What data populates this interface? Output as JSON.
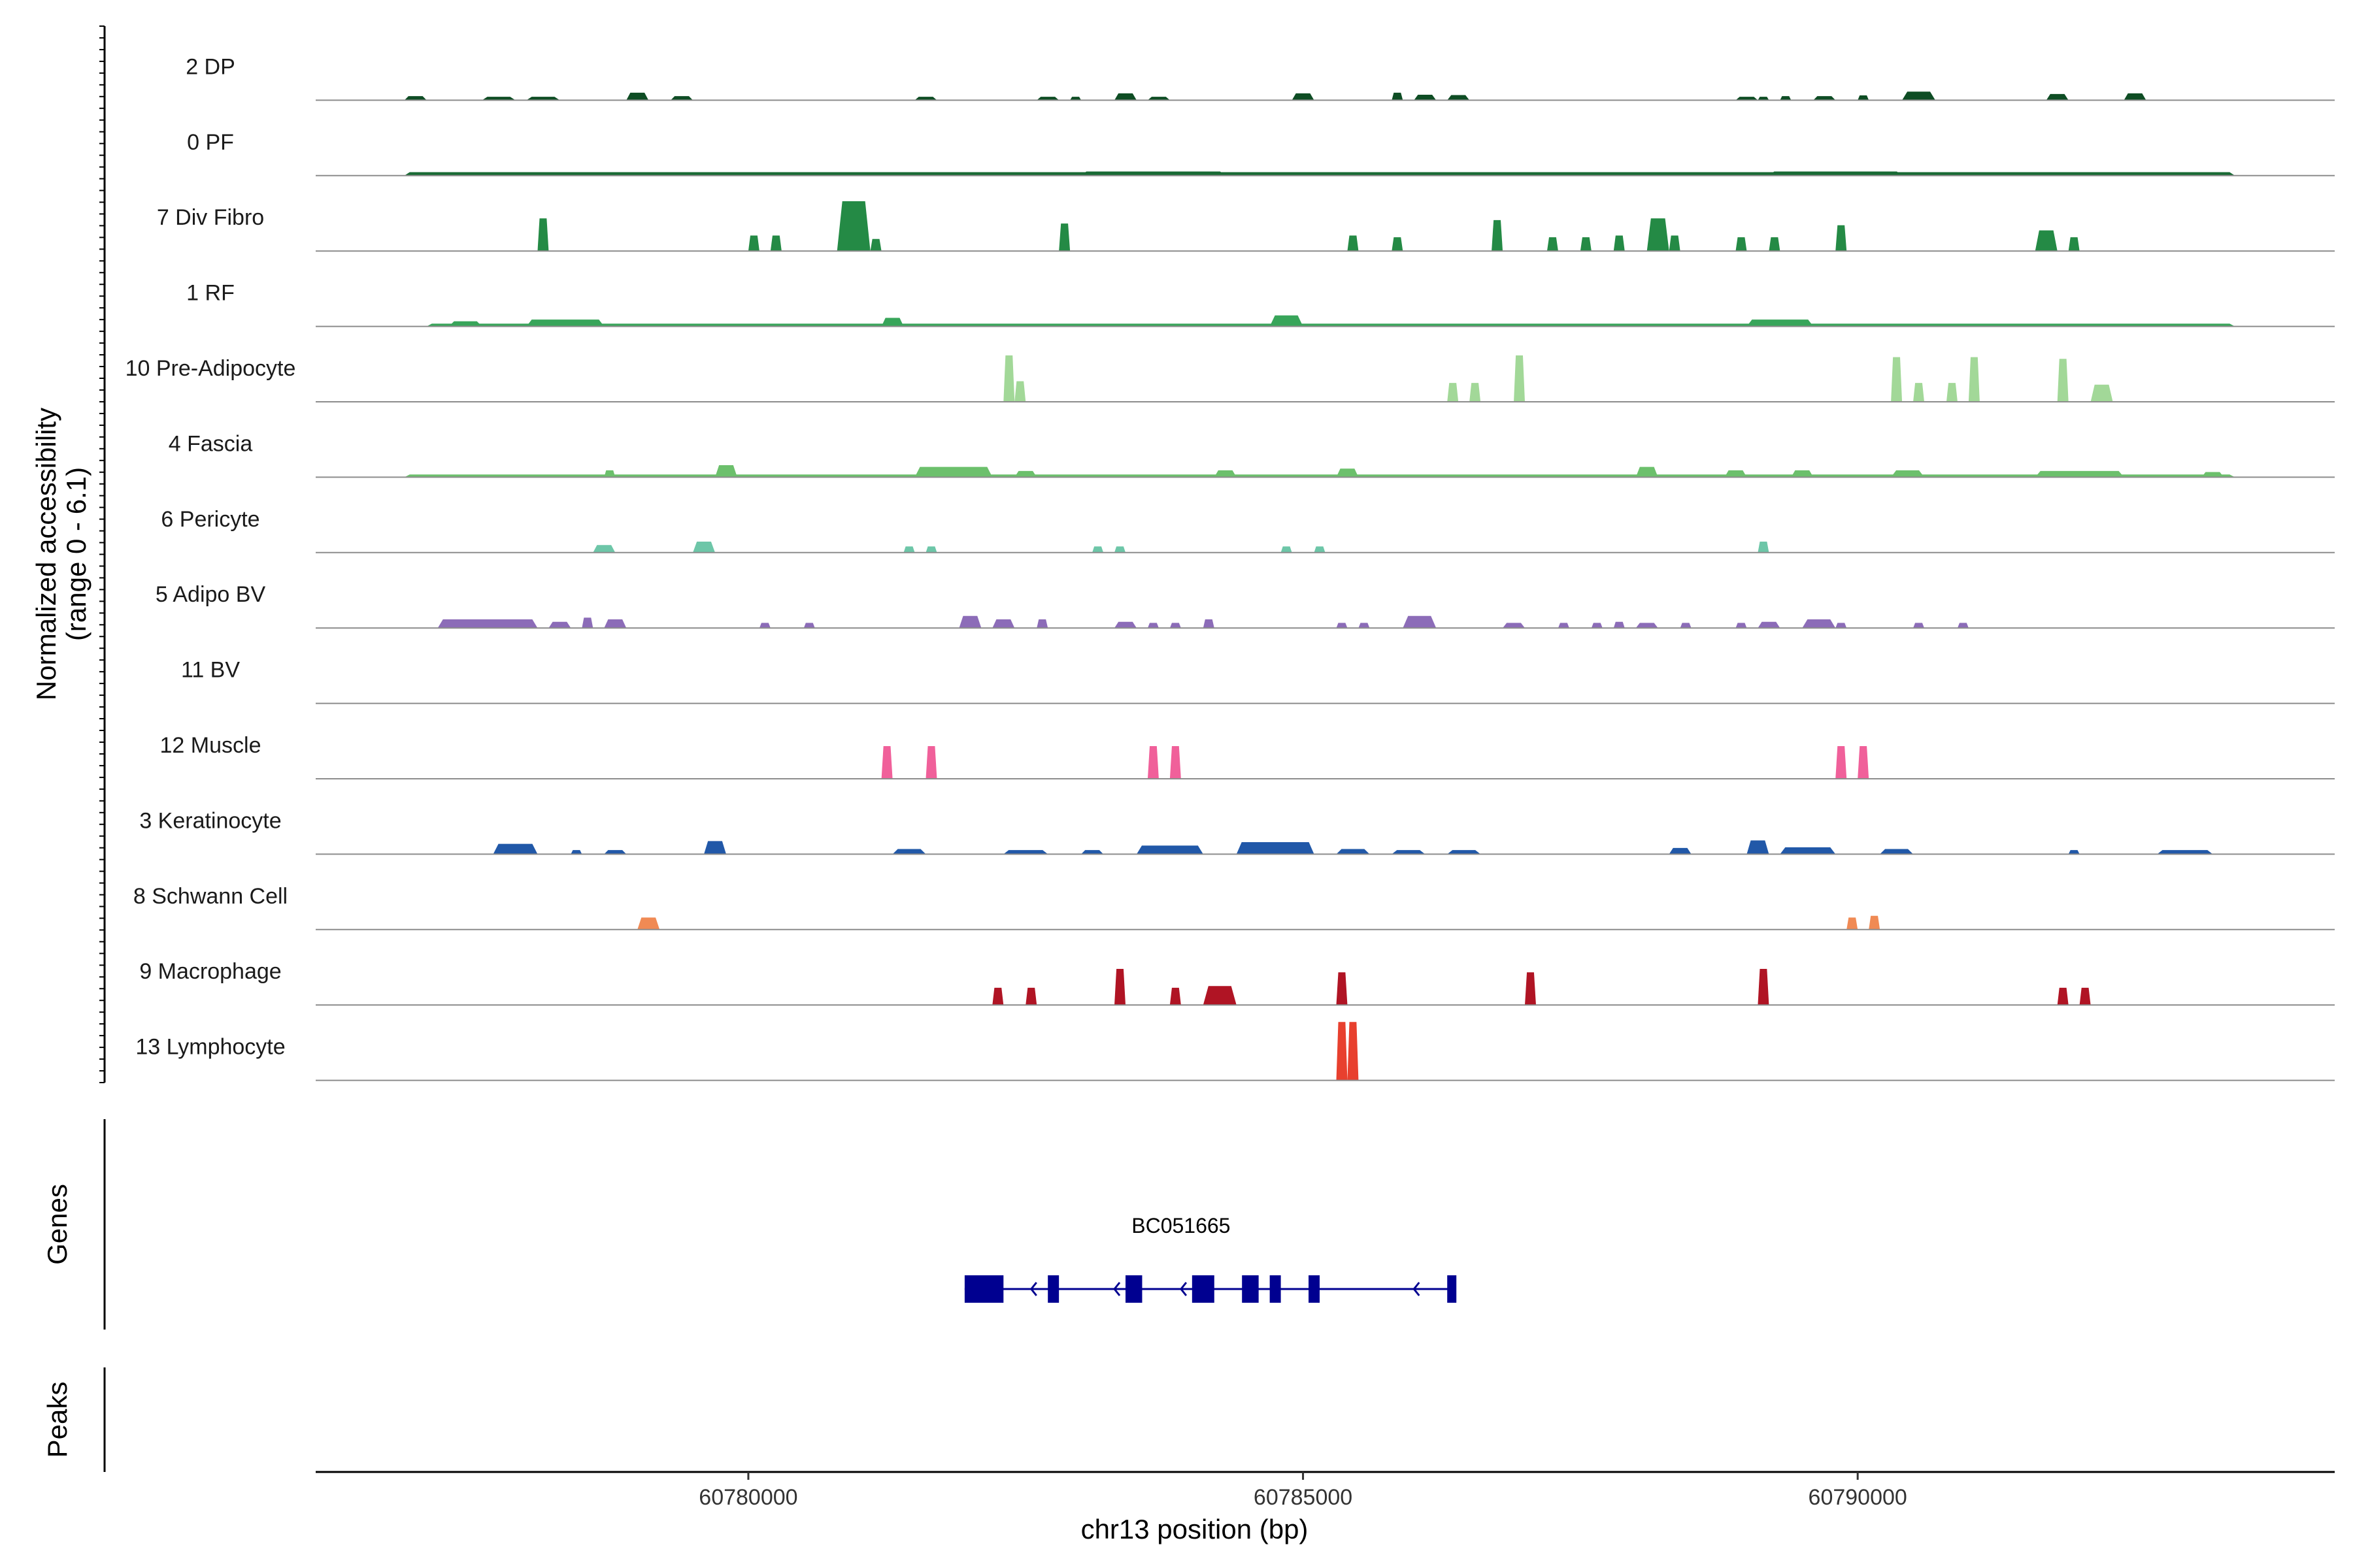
{
  "chart_data": {
    "type": "area",
    "title": "",
    "ylabel": "Normalized accessibility\n(range 0 - 6.1)",
    "y_range": [
      0,
      6.1
    ],
    "xlabel": "chr13 position (bp)",
    "xlim": [
      60776100,
      60794300
    ],
    "x_ticks": [
      60780000,
      60785000,
      60790000
    ],
    "x_tick_labels": [
      "60780000",
      "60785000",
      "60790000"
    ],
    "tracks": [
      {
        "name": "2 DP",
        "color": "#0e4d24",
        "peaks": [
          [
            60776900,
            60777100,
            0.12
          ],
          [
            60777600,
            60777900,
            0.1
          ],
          [
            60778000,
            60778300,
            0.1
          ],
          [
            60778900,
            60779100,
            0.22
          ],
          [
            60779300,
            60779500,
            0.12
          ],
          [
            60781500,
            60781700,
            0.1
          ],
          [
            60782600,
            60782800,
            0.1
          ],
          [
            60782900,
            60783000,
            0.1
          ],
          [
            60783300,
            60783500,
            0.2
          ],
          [
            60783600,
            60783800,
            0.1
          ],
          [
            60784900,
            60785100,
            0.2
          ],
          [
            60785800,
            60785900,
            0.22
          ],
          [
            60786000,
            60786200,
            0.16
          ],
          [
            60786300,
            60786500,
            0.15
          ],
          [
            60788900,
            60789100,
            0.1
          ],
          [
            60789100,
            60789200,
            0.1
          ],
          [
            60789300,
            60789400,
            0.12
          ],
          [
            60789600,
            60789800,
            0.12
          ],
          [
            60790000,
            60790100,
            0.14
          ],
          [
            60790400,
            60790700,
            0.25
          ],
          [
            60791700,
            60791900,
            0.18
          ],
          [
            60792400,
            60792600,
            0.2
          ]
        ]
      },
      {
        "name": "0 PF",
        "color": "#186a34",
        "peaks": [
          [
            60776900,
            60793400,
            0.1
          ],
          [
            60778500,
            60779300,
            0.1
          ],
          [
            60779600,
            60780300,
            0.1
          ],
          [
            60783000,
            60784300,
            0.12
          ],
          [
            60784500,
            60785600,
            0.1
          ],
          [
            60786500,
            60787700,
            0.1
          ],
          [
            60789200,
            60790400,
            0.12
          ],
          [
            60791700,
            60792500,
            0.1
          ]
        ]
      },
      {
        "name": "7 Div Fibro",
        "color": "#248a45",
        "peaks": [
          [
            60778100,
            60778200,
            0.95
          ],
          [
            60780000,
            60780100,
            0.45
          ],
          [
            60780200,
            60780300,
            0.45
          ],
          [
            60780800,
            60781100,
            1.45
          ],
          [
            60781100,
            60781200,
            0.35
          ],
          [
            60782800,
            60782900,
            0.8
          ],
          [
            60785400,
            60785500,
            0.45
          ],
          [
            60785800,
            60785900,
            0.4
          ],
          [
            60786700,
            60786800,
            0.9
          ],
          [
            60787200,
            60787300,
            0.4
          ],
          [
            60787500,
            60787600,
            0.4
          ],
          [
            60787800,
            60787900,
            0.45
          ],
          [
            60788100,
            60788300,
            0.95
          ],
          [
            60788300,
            60788400,
            0.45
          ],
          [
            60788900,
            60789000,
            0.4
          ],
          [
            60789200,
            60789300,
            0.4
          ],
          [
            60789800,
            60789900,
            0.75
          ],
          [
            60791600,
            60791800,
            0.6
          ],
          [
            60791900,
            60792000,
            0.4
          ]
        ]
      },
      {
        "name": "1 RF",
        "color": "#38a55a",
        "peaks": [
          [
            60777100,
            60793400,
            0.08
          ],
          [
            60777300,
            60777600,
            0.15
          ],
          [
            60778000,
            60778700,
            0.2
          ],
          [
            60781200,
            60781400,
            0.25
          ],
          [
            60784700,
            60785000,
            0.32
          ],
          [
            60789000,
            60789600,
            0.2
          ]
        ]
      },
      {
        "name": "10 Pre-Adipocyte",
        "color": "#a2d898",
        "peaks": [
          [
            60782300,
            60782400,
            1.35
          ],
          [
            60782400,
            60782500,
            0.6
          ],
          [
            60786300,
            60786400,
            0.55
          ],
          [
            60786500,
            60786600,
            0.55
          ],
          [
            60786900,
            60787000,
            1.35
          ],
          [
            60790300,
            60790400,
            1.3
          ],
          [
            60790500,
            60790600,
            0.55
          ],
          [
            60790800,
            60790900,
            0.55
          ],
          [
            60791000,
            60791100,
            1.3
          ],
          [
            60791800,
            60791900,
            1.25
          ],
          [
            60792100,
            60792300,
            0.5
          ]
        ]
      },
      {
        "name": "4 Fascia",
        "color": "#6cc06c",
        "peaks": [
          [
            60776900,
            60793400,
            0.08
          ],
          [
            60778700,
            60778800,
            0.2
          ],
          [
            60779700,
            60779900,
            0.35
          ],
          [
            60781500,
            60782200,
            0.3
          ],
          [
            60782400,
            60782600,
            0.18
          ],
          [
            60784200,
            60784400,
            0.2
          ],
          [
            60785300,
            60785500,
            0.25
          ],
          [
            60788000,
            60788200,
            0.3
          ],
          [
            60788800,
            60789000,
            0.2
          ],
          [
            60789400,
            60789600,
            0.2
          ],
          [
            60790300,
            60790600,
            0.2
          ],
          [
            60791600,
            60792400,
            0.18
          ],
          [
            60793100,
            60793300,
            0.15
          ]
        ]
      },
      {
        "name": "6 Pericyte",
        "color": "#6dc6a8",
        "peaks": [
          [
            60778600,
            60778800,
            0.22
          ],
          [
            60779500,
            60779700,
            0.32
          ],
          [
            60781400,
            60781500,
            0.18
          ],
          [
            60781600,
            60781700,
            0.18
          ],
          [
            60783100,
            60783200,
            0.18
          ],
          [
            60783300,
            60783400,
            0.18
          ],
          [
            60784800,
            60784900,
            0.18
          ],
          [
            60785100,
            60785200,
            0.18
          ],
          [
            60789100,
            60789200,
            0.32
          ]
        ]
      },
      {
        "name": "5 Adipo BV",
        "color": "#8c6cb8",
        "peaks": [
          [
            60777200,
            60778100,
            0.25
          ],
          [
            60778200,
            60778400,
            0.18
          ],
          [
            60778500,
            60778600,
            0.3
          ],
          [
            60778700,
            60778900,
            0.25
          ],
          [
            60780100,
            60780200,
            0.15
          ],
          [
            60780500,
            60780600,
            0.15
          ],
          [
            60781900,
            60782100,
            0.35
          ],
          [
            60782200,
            60782400,
            0.25
          ],
          [
            60782600,
            60782700,
            0.25
          ],
          [
            60783300,
            60783500,
            0.18
          ],
          [
            60783600,
            60783700,
            0.15
          ],
          [
            60783800,
            60783900,
            0.15
          ],
          [
            60784100,
            60784200,
            0.25
          ],
          [
            60785300,
            60785400,
            0.15
          ],
          [
            60785500,
            60785600,
            0.15
          ],
          [
            60785900,
            60786200,
            0.35
          ],
          [
            60786800,
            60787000,
            0.15
          ],
          [
            60787300,
            60787400,
            0.15
          ],
          [
            60787600,
            60787700,
            0.15
          ],
          [
            60787800,
            60787900,
            0.18
          ],
          [
            60788000,
            60788200,
            0.15
          ],
          [
            60788400,
            60788500,
            0.15
          ],
          [
            60788900,
            60789000,
            0.15
          ],
          [
            60789100,
            60789300,
            0.18
          ],
          [
            60789500,
            60789800,
            0.25
          ],
          [
            60789800,
            60789900,
            0.15
          ],
          [
            60790500,
            60790600,
            0.15
          ],
          [
            60790900,
            60791000,
            0.15
          ]
        ]
      },
      {
        "name": "11 BV",
        "color": "#6a51a3",
        "peaks": []
      },
      {
        "name": "12 Muscle",
        "color": "#f0609a",
        "peaks": [
          [
            60781200,
            60781300,
            0.95
          ],
          [
            60781600,
            60781700,
            0.95
          ],
          [
            60783600,
            60783700,
            0.95
          ],
          [
            60783800,
            60783900,
            0.95
          ],
          [
            60789800,
            60789900,
            0.95
          ],
          [
            60790000,
            60790100,
            0.95
          ]
        ]
      },
      {
        "name": "3 Keratinocyte",
        "color": "#2158a8",
        "peaks": [
          [
            60777700,
            60778100,
            0.3
          ],
          [
            60778400,
            60778500,
            0.12
          ],
          [
            60778700,
            60778900,
            0.12
          ],
          [
            60779600,
            60779800,
            0.38
          ],
          [
            60781300,
            60781600,
            0.15
          ],
          [
            60782300,
            60782700,
            0.12
          ],
          [
            60783000,
            60783200,
            0.12
          ],
          [
            60783500,
            60784100,
            0.25
          ],
          [
            60784400,
            60785100,
            0.35
          ],
          [
            60785300,
            60785600,
            0.15
          ],
          [
            60785800,
            60786100,
            0.12
          ],
          [
            60786300,
            60786600,
            0.12
          ],
          [
            60788300,
            60788500,
            0.18
          ],
          [
            60789000,
            60789200,
            0.4
          ],
          [
            60789300,
            60789800,
            0.2
          ],
          [
            60790200,
            60790500,
            0.15
          ],
          [
            60791900,
            60792000,
            0.12
          ],
          [
            60792700,
            60793200,
            0.12
          ]
        ]
      },
      {
        "name": "8 Schwann Cell",
        "color": "#f08a54",
        "peaks": [
          [
            60779000,
            60779200,
            0.35
          ],
          [
            60789900,
            60790000,
            0.35
          ],
          [
            60790100,
            60790200,
            0.4
          ]
        ]
      },
      {
        "name": "9 Macrophage",
        "color": "#b01424",
        "peaks": [
          [
            60782200,
            60782300,
            0.5
          ],
          [
            60782500,
            60782600,
            0.5
          ],
          [
            60783300,
            60783400,
            1.05
          ],
          [
            60783800,
            60783900,
            0.5
          ],
          [
            60784100,
            60784400,
            0.55
          ],
          [
            60785300,
            60785400,
            0.95
          ],
          [
            60787000,
            60787100,
            0.95
          ],
          [
            60789100,
            60789200,
            1.05
          ],
          [
            60791800,
            60791900,
            0.5
          ],
          [
            60792000,
            60792100,
            0.5
          ]
        ]
      },
      {
        "name": "13 Lymphocyte",
        "color": "#e8402e",
        "peaks": [
          [
            60785300,
            60785400,
            1.7
          ],
          [
            60785400,
            60785500,
            1.7
          ]
        ]
      }
    ],
    "gene": {
      "name": "BC051665",
      "strand": "-",
      "start": 60781950,
      "end": 60786350,
      "exons": [
        [
          60781950,
          60782300
        ],
        [
          60782700,
          60782800
        ],
        [
          60783400,
          60783550
        ],
        [
          60784000,
          60784200
        ],
        [
          60784450,
          60784600
        ],
        [
          60784700,
          60784800
        ],
        [
          60785050,
          60785150
        ],
        [
          60786300,
          60786350
        ]
      ],
      "color": "#000090"
    },
    "panels": {
      "genes_label": "Genes",
      "peaks_label": "Peaks"
    }
  }
}
